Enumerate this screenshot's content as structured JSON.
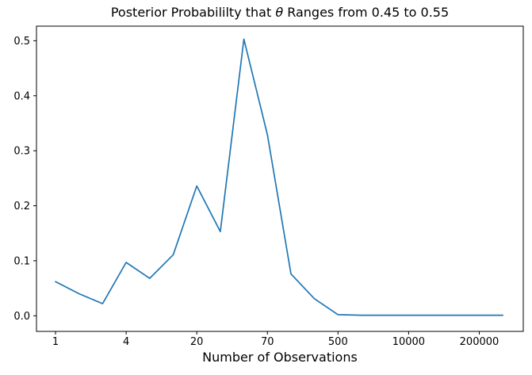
{
  "figure": {
    "title": {
      "pre": "Posterior Probabililty that ",
      "theta": "θ",
      "post": " Ranges from 0.45 to 0.55"
    },
    "xlabel": "Number of Observations"
  },
  "chart_data": {
    "type": "line",
    "title": "Posterior Probabililty that θ Ranges from 0.45 to 0.55",
    "xlabel": "Number of Observations",
    "ylabel": "",
    "x_scale_note": "20 equally spaced points (index scale); tick labels mark observation counts at every 3rd point",
    "x_indices": [
      0,
      1,
      2,
      3,
      4,
      5,
      6,
      7,
      8,
      9,
      10,
      11,
      12,
      13,
      14,
      15,
      16,
      17,
      18,
      19
    ],
    "values": [
      0.062,
      0.04,
      0.022,
      0.097,
      0.068,
      0.111,
      0.236,
      0.153,
      0.503,
      0.329,
      0.076,
      0.031,
      0.002,
      0.001,
      0.001,
      0.001,
      0.001,
      0.001,
      0.001,
      0.001
    ],
    "x_ticks": [
      {
        "index": 0,
        "label": "1"
      },
      {
        "index": 3,
        "label": "4"
      },
      {
        "index": 6,
        "label": "20"
      },
      {
        "index": 9,
        "label": "70"
      },
      {
        "index": 12,
        "label": "500"
      },
      {
        "index": 15,
        "label": "10000"
      },
      {
        "index": 18,
        "label": "200000"
      }
    ],
    "y_ticks": [
      {
        "value": 0.0,
        "label": "0.0"
      },
      {
        "value": 0.1,
        "label": "0.1"
      },
      {
        "value": 0.2,
        "label": "0.2"
      },
      {
        "value": 0.3,
        "label": "0.3"
      },
      {
        "value": 0.4,
        "label": "0.4"
      },
      {
        "value": 0.5,
        "label": "0.5"
      }
    ],
    "xlim": [
      -0.81,
      19.87
    ],
    "ylim": [
      -0.0284,
      0.5265
    ],
    "line_color": "#1f77b4",
    "axis_color": "#000000",
    "grid": false,
    "legend": null
  }
}
